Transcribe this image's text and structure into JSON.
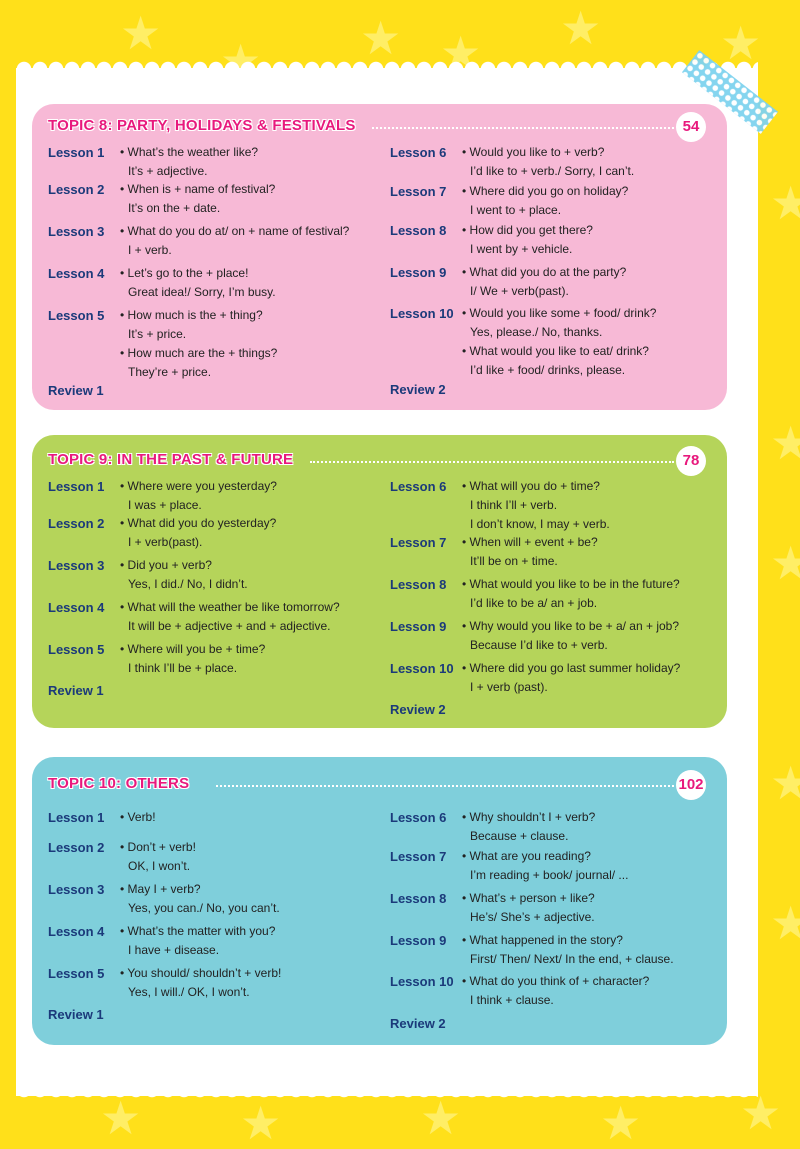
{
  "colors": {
    "background": "#ffe01a",
    "topic_title": "#e8197d",
    "lesson_label": "#1b3a7a",
    "topic8_card": "#f7b9d6",
    "topic9_card": "#b5d45a",
    "topic10_card": "#7fcfdb"
  },
  "topics": [
    {
      "title": "TOPIC 8: PARTY, HOLIDAYS & FESTIVALS",
      "page": "54",
      "left": [
        {
          "label": "Lesson 1",
          "items": [
            {
              "q": "What’s the weather like?",
              "a": [
                "It’s + adjective."
              ]
            }
          ]
        },
        {
          "label": "Lesson 2",
          "items": [
            {
              "q": "When is + name of festival?",
              "a": [
                "It’s on the + date."
              ]
            }
          ]
        },
        {
          "label": "Lesson 3",
          "items": [
            {
              "q": "What do you do at/ on + name of festival?",
              "a": [
                "I + verb."
              ]
            }
          ]
        },
        {
          "label": "Lesson 4",
          "items": [
            {
              "q": "Let’s go to the + place!",
              "a": [
                "Great idea!/ Sorry, I’m busy."
              ]
            }
          ]
        },
        {
          "label": "Lesson 5",
          "items": [
            {
              "q": "How much is the + thing?",
              "a": [
                "It’s + price."
              ]
            },
            {
              "q": "How much are the + things?",
              "a": [
                "They’re + price."
              ]
            }
          ]
        },
        {
          "label": "Review 1",
          "items": []
        }
      ],
      "right": [
        {
          "label": "Lesson 6",
          "items": [
            {
              "q": "Would you like to + verb?",
              "a": [
                "I’d like to + verb./ Sorry, I can’t."
              ]
            }
          ]
        },
        {
          "label": "Lesson 7",
          "items": [
            {
              "q": "Where did you go on holiday?",
              "a": [
                "I went to + place."
              ]
            }
          ]
        },
        {
          "label": "Lesson 8",
          "items": [
            {
              "q": "How did you get there?",
              "a": [
                "I went by + vehicle."
              ]
            }
          ]
        },
        {
          "label": "Lesson 9",
          "items": [
            {
              "q": "What did you do at the party?",
              "a": [
                "I/ We + verb(past)."
              ]
            }
          ]
        },
        {
          "label": "Lesson 10",
          "items": [
            {
              "q": "Would you like some + food/ drink?",
              "a": [
                "Yes, please./ No, thanks."
              ]
            },
            {
              "q": "What would you like to eat/ drink?",
              "a": [
                "I’d like + food/ drinks, please."
              ]
            }
          ]
        },
        {
          "label": "Review 2",
          "items": []
        }
      ]
    },
    {
      "title": "TOPIC 9: IN THE PAST & FUTURE",
      "page": "78",
      "left": [
        {
          "label": "Lesson 1",
          "items": [
            {
              "q": "Where were you yesterday?",
              "a": [
                "I was + place."
              ]
            }
          ]
        },
        {
          "label": "Lesson 2",
          "items": [
            {
              "q": "What did you do yesterday?",
              "a": [
                "I + verb(past)."
              ]
            }
          ]
        },
        {
          "label": "Lesson 3",
          "items": [
            {
              "q": "Did you + verb?",
              "a": [
                "Yes, I did./ No, I didn’t."
              ]
            }
          ]
        },
        {
          "label": "Lesson 4",
          "items": [
            {
              "q": "What will the weather be like tomorrow?",
              "a": [
                "It will be + adjective + and + adjective."
              ]
            }
          ]
        },
        {
          "label": "Lesson 5",
          "items": [
            {
              "q": "Where will you be + time?",
              "a": [
                "I think I’ll be + place."
              ]
            }
          ]
        },
        {
          "label": "Review 1",
          "items": []
        }
      ],
      "right": [
        {
          "label": "Lesson 6",
          "items": [
            {
              "q": "What will you do + time?",
              "a": [
                "I think I’ll + verb.",
                "I don’t know, I may + verb."
              ]
            }
          ]
        },
        {
          "label": "Lesson 7",
          "items": [
            {
              "q": "When will + event + be?",
              "a": [
                "It’ll be on + time."
              ]
            }
          ]
        },
        {
          "label": "Lesson 8",
          "items": [
            {
              "q": "What would you like to be in the future?",
              "a": [
                "I’d like to be a/ an + job."
              ]
            }
          ]
        },
        {
          "label": "Lesson 9",
          "items": [
            {
              "q": "Why would you like to be + a/ an + job?",
              "a": [
                "Because I’d like to + verb."
              ]
            }
          ]
        },
        {
          "label": "Lesson 10",
          "items": [
            {
              "q": "Where did you go last summer holiday?",
              "a": [
                "I + verb (past)."
              ]
            }
          ]
        },
        {
          "label": "Review 2",
          "items": []
        }
      ]
    },
    {
      "title": "TOPIC 10: OTHERS",
      "page": "102",
      "left": [
        {
          "label": "Lesson 1",
          "items": [
            {
              "q": "Verb!",
              "a": []
            }
          ]
        },
        {
          "label": "Lesson 2",
          "items": [
            {
              "q": "Don’t + verb!",
              "a": [
                "OK, I won’t."
              ]
            }
          ]
        },
        {
          "label": "Lesson 3",
          "items": [
            {
              "q": "May I + verb?",
              "a": [
                "Yes, you can./ No, you can’t."
              ]
            }
          ]
        },
        {
          "label": "Lesson 4",
          "items": [
            {
              "q": "What’s the matter with you?",
              "a": [
                "I have + disease."
              ]
            }
          ]
        },
        {
          "label": "Lesson 5",
          "items": [
            {
              "q": "You should/ shouldn’t + verb!",
              "a": [
                "Yes, I will./ OK, I won’t."
              ]
            }
          ]
        },
        {
          "label": "Review 1",
          "items": []
        }
      ],
      "right": [
        {
          "label": "Lesson 6",
          "items": [
            {
              "q": "Why shouldn’t I + verb?",
              "a": [
                "Because + clause."
              ]
            }
          ]
        },
        {
          "label": "Lesson 7",
          "items": [
            {
              "q": "What are you reading?",
              "a": [
                "I’m reading + book/ journal/ ..."
              ]
            }
          ]
        },
        {
          "label": "Lesson 8",
          "items": [
            {
              "q": "What’s + person + like?",
              "a": [
                "He’s/ She’s + adjective."
              ]
            }
          ]
        },
        {
          "label": "Lesson 9",
          "items": [
            {
              "q": "What happened in the story?",
              "a": [
                "First/ Then/ Next/ In the end, + clause."
              ]
            }
          ]
        },
        {
          "label": "Lesson 10",
          "items": [
            {
              "q": "What do you think of + character?",
              "a": [
                "I think + clause."
              ]
            }
          ]
        },
        {
          "label": "Review 2",
          "items": []
        }
      ]
    }
  ]
}
